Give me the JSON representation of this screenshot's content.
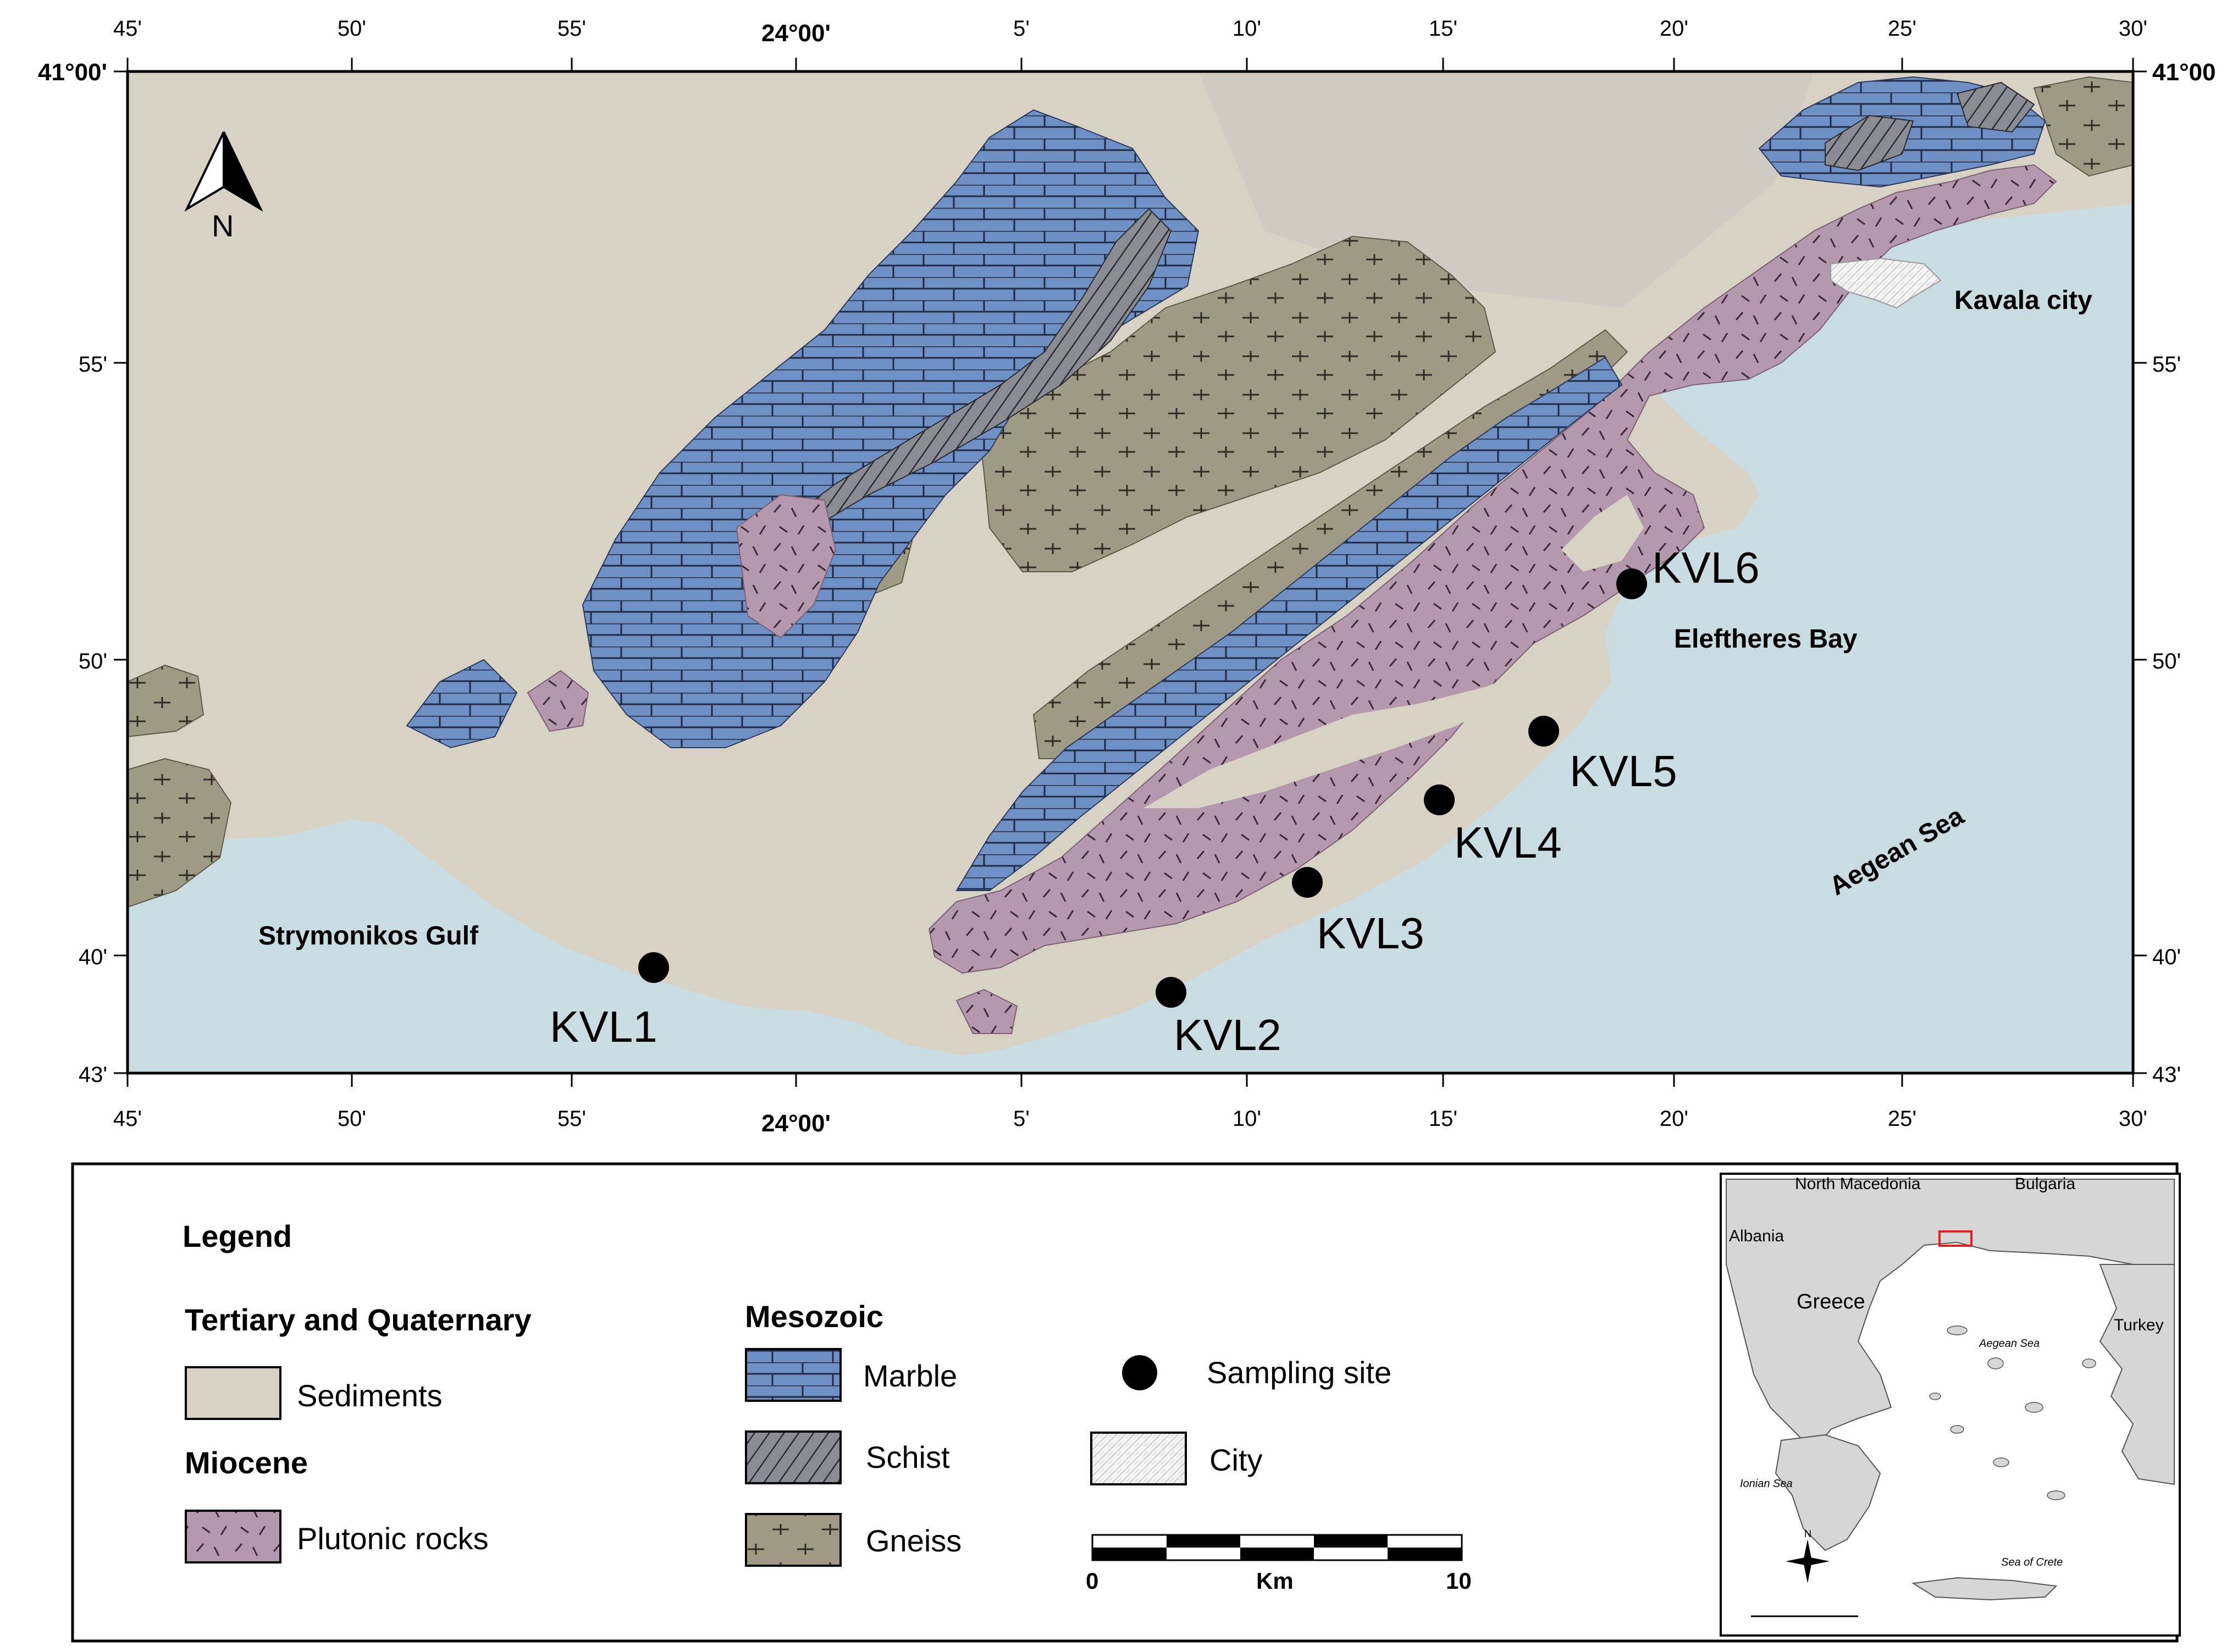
{
  "map": {
    "top_ticks": [
      "45'",
      "50'",
      "55'",
      "24°00'",
      "5'",
      "10'",
      "15'",
      "20'",
      "25'",
      "30'"
    ],
    "bottom_ticks": [
      "45'",
      "50'",
      "55'",
      "24°00'",
      "5'",
      "10'",
      "15'",
      "20'",
      "25'",
      "30'"
    ],
    "left_ticks": [
      "41°00'",
      "55'",
      "50'",
      "40'",
      "43'"
    ],
    "right_ticks": [
      "41°00",
      "55'",
      "50'",
      "40'",
      "43'"
    ],
    "sites": [
      {
        "label": "KVL1"
      },
      {
        "label": "KVL2"
      },
      {
        "label": "KVL3"
      },
      {
        "label": "KVL4"
      },
      {
        "label": "KVL5"
      },
      {
        "label": "KVL6"
      }
    ],
    "places": {
      "kavala": "Kavala city",
      "eleftheres": "Eleftheres Bay",
      "aegean": "Aegean Sea",
      "strymonikos": "Strymonikos Gulf"
    },
    "north_label": "N"
  },
  "legend": {
    "title": "Legend",
    "tertiary_heading": "Tertiary and Quaternary",
    "sediments": "Sediments",
    "miocene_heading": "Miocene",
    "plutonic": "Plutonic rocks",
    "mesozoic_heading": "Mesozoic",
    "marble": "Marble",
    "schist": "Schist",
    "gneiss": "Gneiss",
    "sampling_site": "Sampling site",
    "city": "City",
    "scale": {
      "start": "0",
      "unit": "Km",
      "end": "10"
    }
  },
  "inset": {
    "north_macedonia": "North Macedonia",
    "bulgaria": "Bulgaria",
    "albania": "Albania",
    "greece": "Greece",
    "turkey": "Turkey",
    "aegean": "Aegean Sea",
    "ionian": "Ionian Sea",
    "crete_sea": "Sea of Crete",
    "north": "N"
  },
  "colors": {
    "sediments": "#d8d2c4",
    "sea": "#c8dce2",
    "marble": "#6f90c4",
    "schist": "#8a8c94",
    "gneiss": "#9e9a86",
    "plutonic": "#b498ad",
    "marker": "#000000"
  }
}
